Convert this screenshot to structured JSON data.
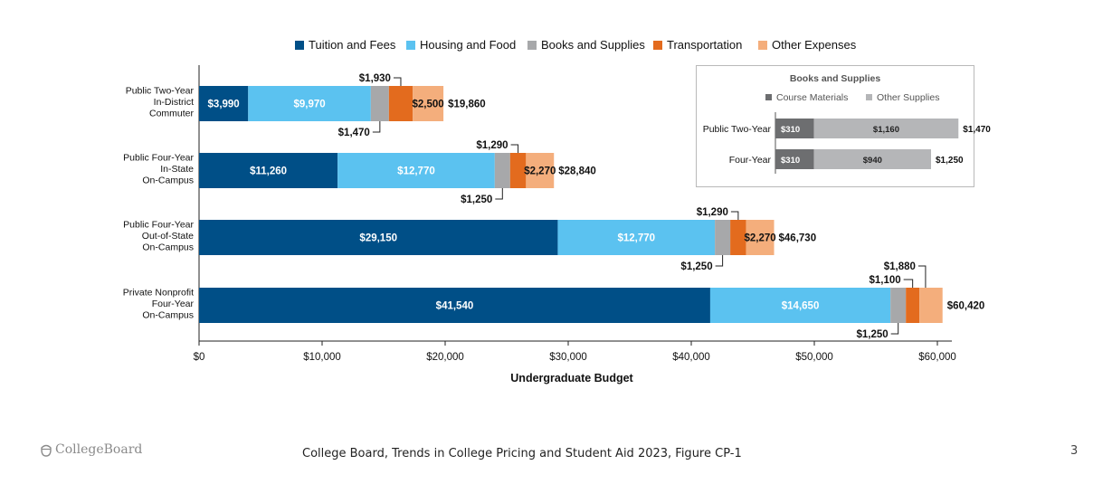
{
  "footer": {
    "logo_text": "CollegeBoard",
    "source": "College Board, Trends in College Pricing and Student Aid 2023, Figure CP-1",
    "page_number": "3"
  },
  "colors": {
    "tuition": "#004f87",
    "housing": "#5bc2f0",
    "books": "#a7a8aa",
    "transport": "#e36b1e",
    "other": "#f4ae7c",
    "course_materials": "#6d6e70",
    "other_supplies": "#b5b6b8"
  },
  "chart_data": [
    {
      "type": "bar",
      "orientation": "horizontal",
      "stacked": true,
      "title": "",
      "xlabel": "Undergraduate Budget",
      "ylabel": "",
      "xlim": [
        0,
        61000
      ],
      "x_ticks": [
        "$0",
        "$10,000",
        "$20,000",
        "$30,000",
        "$40,000",
        "$50,000",
        "$60,000"
      ],
      "legend_position": "top",
      "categories": [
        [
          "Public Two-Year",
          "In-District",
          "Commuter"
        ],
        [
          "Public Four-Year",
          "In-State",
          "On-Campus"
        ],
        [
          "Public Four-Year",
          "Out-of-State",
          "On-Campus"
        ],
        [
          "Private Nonprofit",
          "Four-Year",
          "On-Campus"
        ]
      ],
      "series": [
        {
          "name": "Tuition and Fees",
          "values": [
            3990,
            11260,
            29150,
            41540
          ]
        },
        {
          "name": "Housing and Food",
          "values": [
            9970,
            12770,
            12770,
            14650
          ]
        },
        {
          "name": "Books and Supplies",
          "values": [
            1470,
            1250,
            1250,
            1250
          ]
        },
        {
          "name": "Transportation",
          "values": [
            1930,
            1290,
            1290,
            1100
          ]
        },
        {
          "name": "Other Expenses",
          "values": [
            2500,
            2270,
            2270,
            1880
          ]
        }
      ],
      "value_labels": [
        [
          "$3,990",
          "$9,970",
          "$1,470",
          "$1,930",
          "$2,500"
        ],
        [
          "$11,260",
          "$12,770",
          "$1,250",
          "$1,290",
          "$2,270"
        ],
        [
          "$29,150",
          "$12,770",
          "$1,250",
          "$1,290",
          "$2,270"
        ],
        [
          "$41,540",
          "$14,650",
          "$1,250",
          "$1,100",
          "$1,880"
        ]
      ],
      "totals": [
        19860,
        28840,
        46730,
        60420
      ],
      "total_labels": [
        "$19,860",
        "$28,840",
        "$46,730",
        "$60,420"
      ]
    },
    {
      "type": "bar",
      "orientation": "horizontal",
      "stacked": true,
      "title": "Books and Supplies",
      "legend_position": "top",
      "categories": [
        "Public Two-Year",
        "Four-Year"
      ],
      "series": [
        {
          "name": "Course Materials",
          "values": [
            310,
            310
          ]
        },
        {
          "name": "Other Supplies",
          "values": [
            1160,
            940
          ]
        }
      ],
      "value_labels": [
        [
          "$310",
          "$1,160"
        ],
        [
          "$310",
          "$940"
        ]
      ],
      "totals": [
        1470,
        1250
      ],
      "total_labels": [
        "$1,470",
        "$1,250"
      ]
    }
  ]
}
